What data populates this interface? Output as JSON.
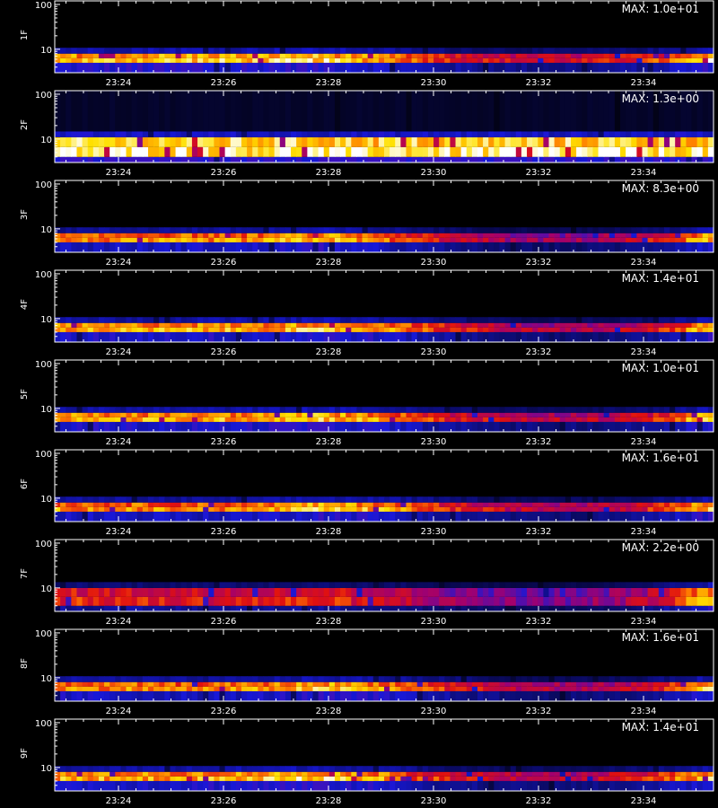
{
  "chart_data": {
    "type": "heatmap",
    "x_ticks": [
      "23:24",
      "23:26",
      "23:28",
      "23:30",
      "23:32",
      "23:34"
    ],
    "y_ticks": [
      "10",
      "100"
    ],
    "y_scale": "log",
    "ylim": [
      3,
      120
    ],
    "colormap": [
      "#000000",
      "#0a0a60",
      "#1818d8",
      "#a00070",
      "#e01010",
      "#ff7a00",
      "#ffe000",
      "#ffffff"
    ],
    "panels": [
      {
        "ylabel": "1F",
        "max_label": "MAX: 1.0e+01",
        "band_low": 5,
        "band_high": 8,
        "intensity": [
          0.82,
          0.86,
          0.88,
          0.86,
          0.9,
          0.78,
          0.62,
          0.55,
          0.55,
          0.62,
          0.9
        ]
      },
      {
        "ylabel": "2F",
        "max_label": "MAX: 1.3e+00",
        "band_low": 4,
        "band_high": 11,
        "intensity": [
          0.95,
          0.95,
          0.96,
          0.95,
          0.95,
          0.95,
          0.94,
          0.95,
          0.95,
          0.95,
          0.95
        ]
      },
      {
        "ylabel": "3F",
        "max_label": "MAX: 8.3e+00",
        "band_low": 5,
        "band_high": 8,
        "intensity": [
          0.72,
          0.74,
          0.76,
          0.76,
          0.85,
          0.72,
          0.55,
          0.45,
          0.45,
          0.55,
          0.85
        ]
      },
      {
        "ylabel": "4F",
        "max_label": "MAX: 1.4e+01",
        "band_low": 5,
        "band_high": 8,
        "intensity": [
          0.8,
          0.8,
          0.82,
          0.8,
          0.86,
          0.8,
          0.62,
          0.5,
          0.48,
          0.55,
          0.85
        ]
      },
      {
        "ylabel": "5F",
        "max_label": "MAX: 1.0e+01",
        "band_low": 5,
        "band_high": 8,
        "intensity": [
          0.82,
          0.8,
          0.8,
          0.82,
          0.88,
          0.78,
          0.6,
          0.52,
          0.5,
          0.58,
          0.88
        ]
      },
      {
        "ylabel": "6F",
        "max_label": "MAX: 1.6e+01",
        "band_low": 5,
        "band_high": 8,
        "intensity": [
          0.78,
          0.76,
          0.74,
          0.76,
          0.86,
          0.8,
          0.62,
          0.52,
          0.5,
          0.58,
          0.88
        ]
      },
      {
        "ylabel": "7F",
        "max_label": "MAX: 2.2e+00",
        "band_low": 4,
        "band_high": 10,
        "intensity": [
          0.62,
          0.6,
          0.58,
          0.6,
          0.62,
          0.55,
          0.45,
          0.4,
          0.4,
          0.5,
          0.85
        ]
      },
      {
        "ylabel": "8F",
        "max_label": "MAX: 1.6e+01",
        "band_low": 5,
        "band_high": 8,
        "intensity": [
          0.78,
          0.76,
          0.74,
          0.76,
          0.86,
          0.8,
          0.62,
          0.5,
          0.48,
          0.55,
          0.86
        ]
      },
      {
        "ylabel": "9F",
        "max_label": "MAX: 1.4e+01",
        "band_low": 5,
        "band_high": 8,
        "intensity": [
          0.8,
          0.8,
          0.82,
          0.84,
          0.9,
          0.78,
          0.6,
          0.52,
          0.5,
          0.6,
          0.85
        ]
      }
    ]
  }
}
